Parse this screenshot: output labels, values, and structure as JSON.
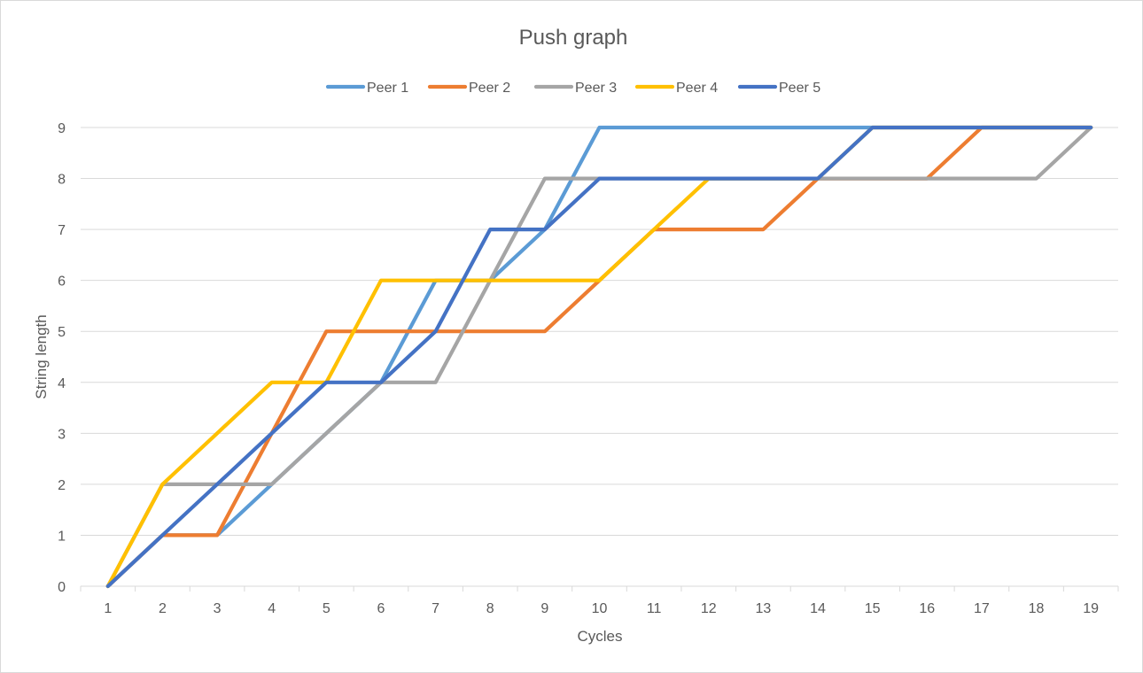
{
  "chart_data": {
    "type": "line",
    "title": "Push graph",
    "xlabel": "Cycles",
    "ylabel": "String length",
    "x": [
      1,
      2,
      3,
      4,
      5,
      6,
      7,
      8,
      9,
      10,
      11,
      12,
      13,
      14,
      15,
      16,
      17,
      18,
      19
    ],
    "ylim": [
      0,
      9
    ],
    "yticks": [
      0,
      1,
      2,
      3,
      4,
      5,
      6,
      7,
      8,
      9
    ],
    "grid": true,
    "legend_position": "top",
    "series": [
      {
        "name": "Peer 1",
        "color": "#5b9bd5",
        "values": [
          0,
          1,
          1,
          2,
          3,
          4,
          6,
          6,
          7,
          9,
          9,
          9,
          9,
          9,
          9,
          9,
          9,
          9,
          9
        ]
      },
      {
        "name": "Peer 2",
        "color": "#ed7d31",
        "values": [
          0,
          1,
          1,
          3,
          5,
          5,
          5,
          5,
          5,
          6,
          7,
          7,
          7,
          8,
          8,
          8,
          9,
          9,
          9
        ]
      },
      {
        "name": "Peer 3",
        "color": "#a5a5a5",
        "values": [
          0,
          2,
          2,
          2,
          3,
          4,
          4,
          6,
          8,
          8,
          8,
          8,
          8,
          8,
          8,
          8,
          8,
          8,
          9
        ]
      },
      {
        "name": "Peer 4",
        "color": "#ffc000",
        "values": [
          0,
          2,
          3,
          4,
          4,
          6,
          6,
          6,
          6,
          6,
          7,
          8,
          8,
          8,
          9,
          9,
          9,
          9,
          9
        ]
      },
      {
        "name": "Peer 5",
        "color": "#4472c4",
        "values": [
          0,
          1,
          2,
          3,
          4,
          4,
          5,
          7,
          7,
          8,
          8,
          8,
          8,
          8,
          9,
          9,
          9,
          9,
          9
        ]
      }
    ]
  }
}
